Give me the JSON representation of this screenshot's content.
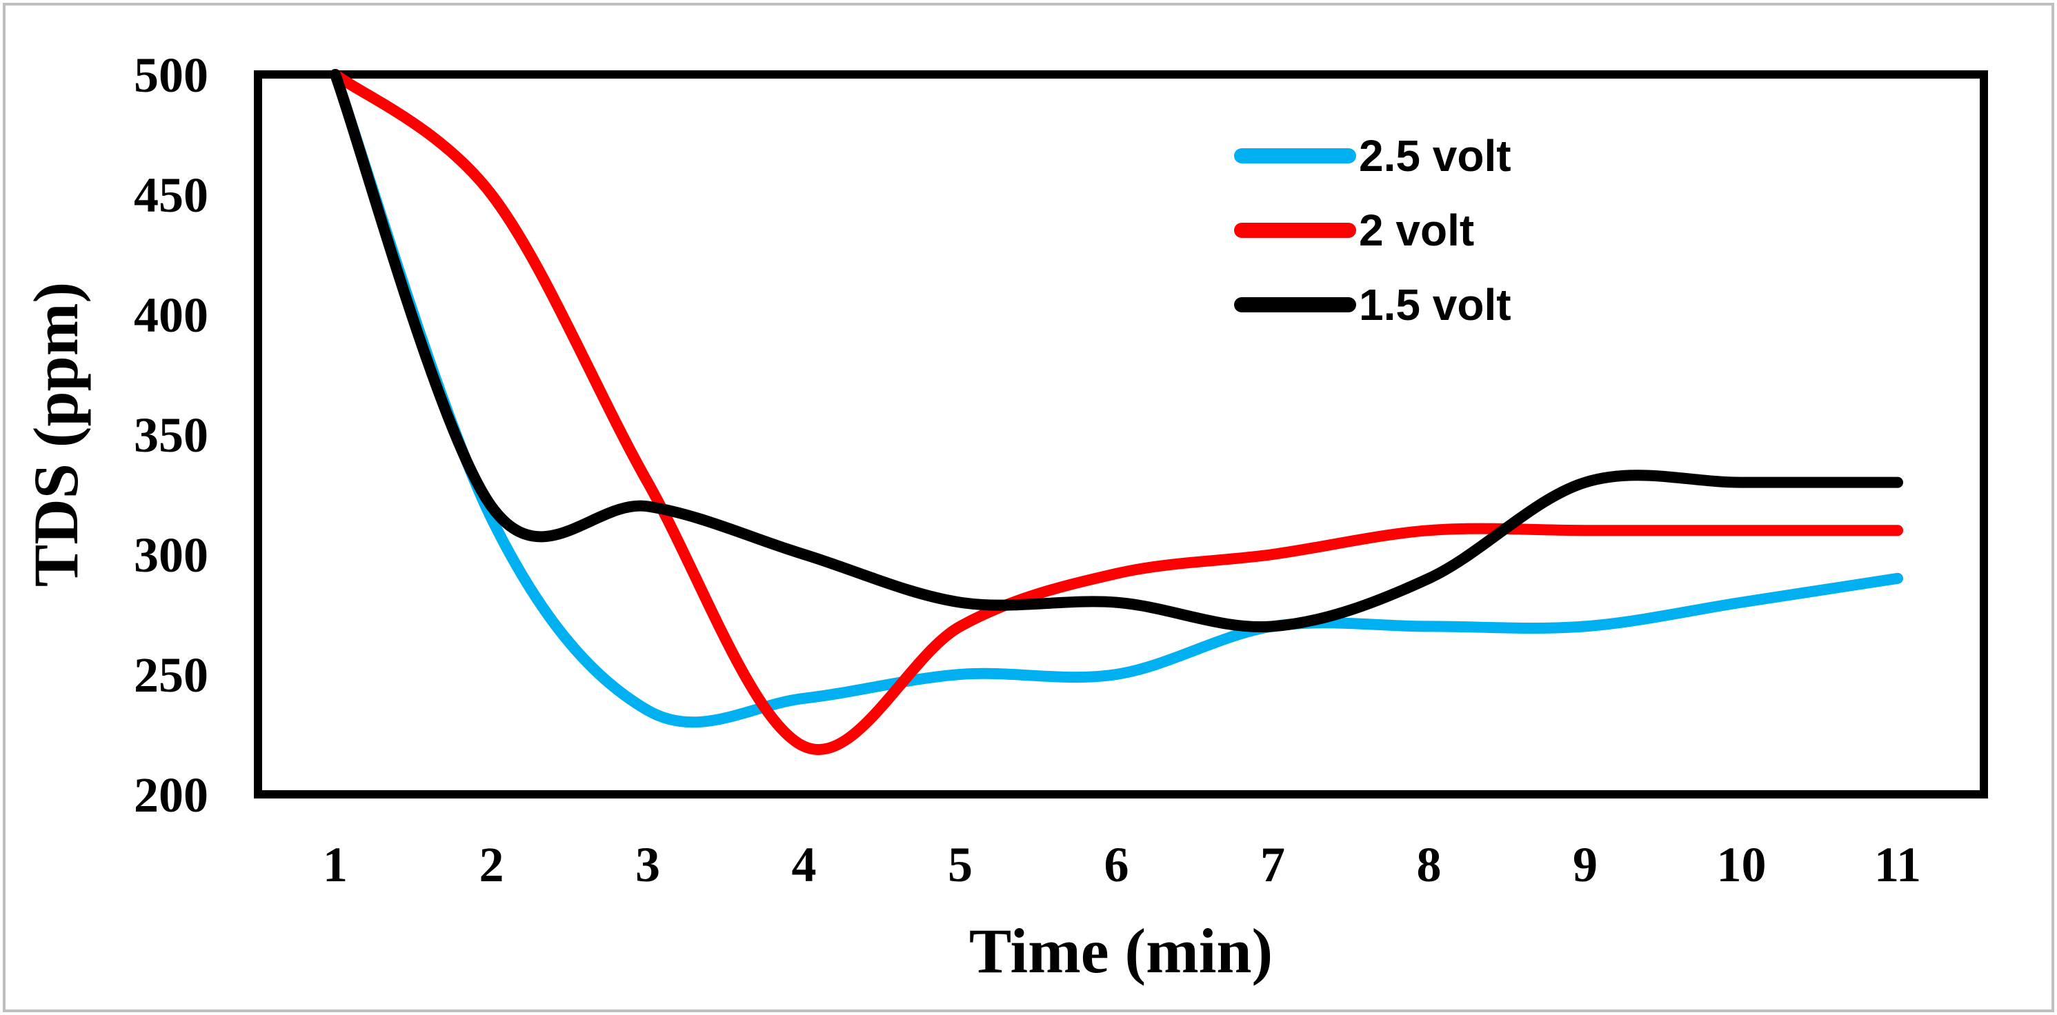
{
  "chart_data": {
    "type": "line",
    "title": "",
    "xlabel": "Time (min)",
    "ylabel": "TDS (ppm)",
    "categories": [
      "1",
      "2",
      "3",
      "4",
      "5",
      "6",
      "7",
      "8",
      "9",
      "10",
      "11"
    ],
    "ylim": [
      200,
      500
    ],
    "yticks": [
      "200",
      "250",
      "300",
      "350",
      "400",
      "450",
      "500"
    ],
    "grid": false,
    "legend_position": "top-right",
    "series": [
      {
        "name": "2.5 volt",
        "color": "#00b0f0",
        "values": [
          500,
          315,
          235,
          240,
          250,
          250,
          270,
          270,
          270,
          280,
          290
        ]
      },
      {
        "name": "2 volt",
        "color": "#ff0000",
        "values": [
          500,
          450,
          330,
          220,
          270,
          292,
          300,
          310,
          310,
          310,
          310
        ]
      },
      {
        "name": "1.5 volt",
        "color": "#000000",
        "values": [
          500,
          320,
          320,
          300,
          280,
          280,
          270,
          290,
          330,
          330,
          330
        ]
      }
    ]
  }
}
